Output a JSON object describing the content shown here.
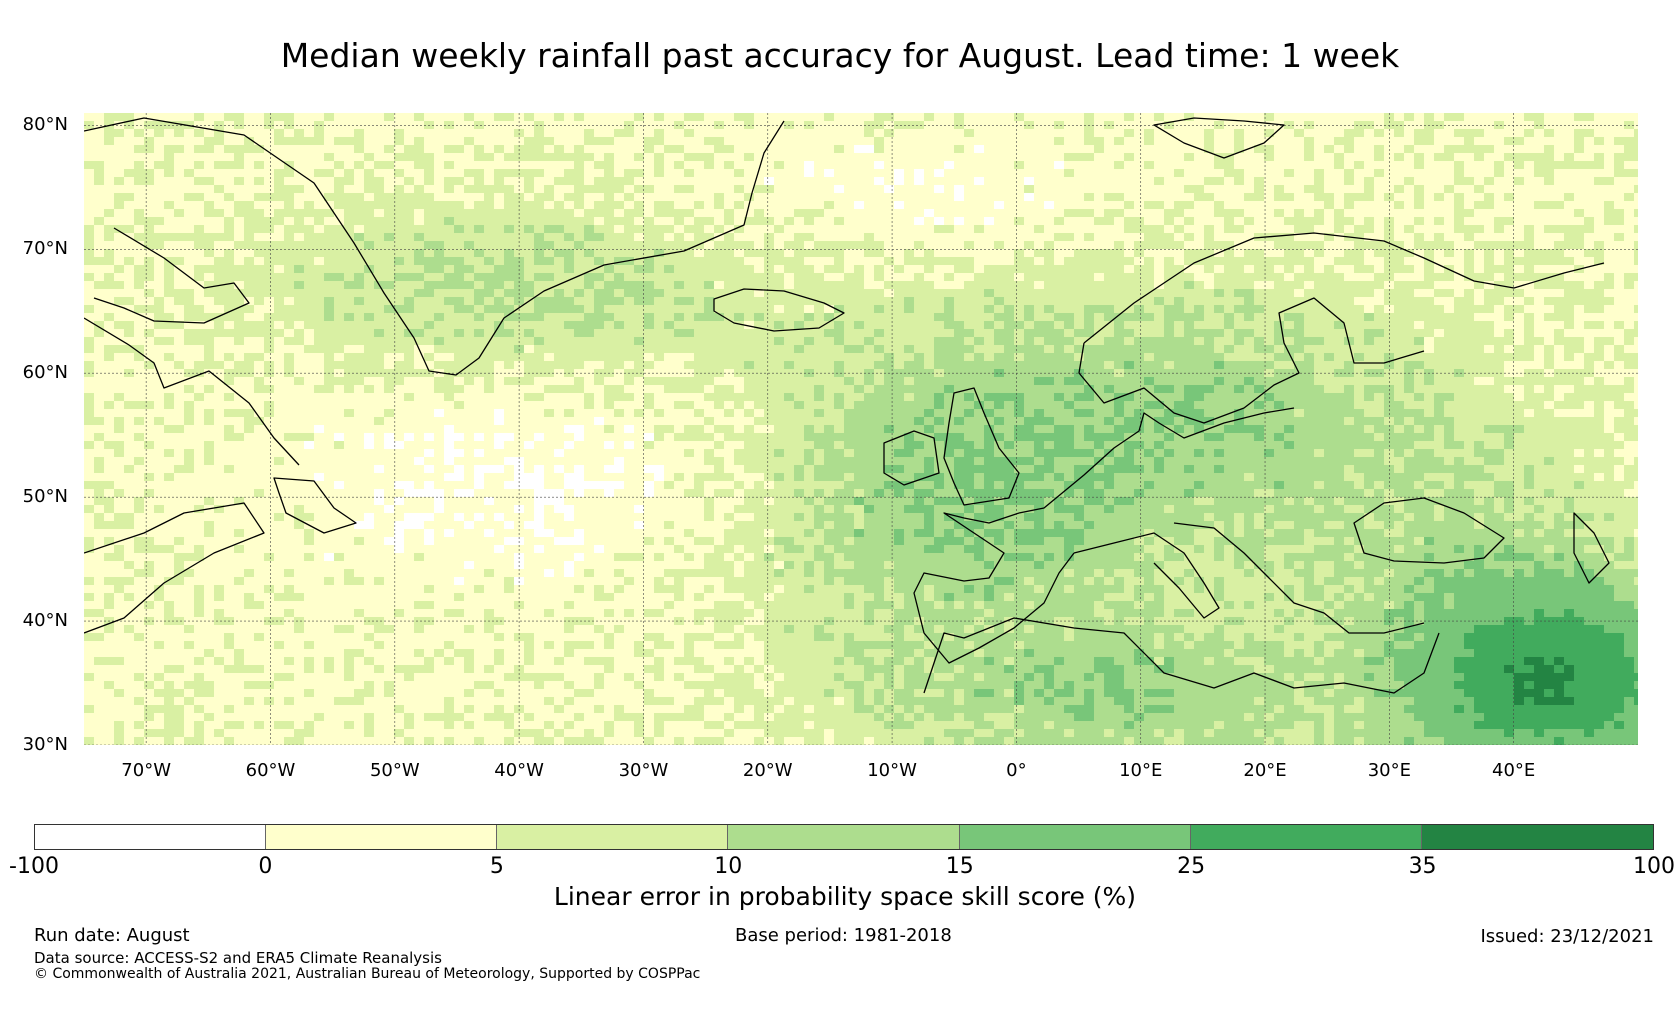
{
  "title": "Median weekly rainfall past accuracy for August. Lead time: 1 week",
  "map": {
    "region": {
      "lon_range": [
        -75,
        50
      ],
      "lat_range": [
        30,
        81
      ]
    },
    "latitude_labels": [
      {
        "lat": 80,
        "text": "80°N"
      },
      {
        "lat": 70,
        "text": "70°N"
      },
      {
        "lat": 60,
        "text": "60°N"
      },
      {
        "lat": 50,
        "text": "50°N"
      },
      {
        "lat": 40,
        "text": "40°N"
      },
      {
        "lat": 30,
        "text": "30°N"
      }
    ],
    "longitude_labels": [
      {
        "lon": -70,
        "text": "70°W"
      },
      {
        "lon": -60,
        "text": "60°W"
      },
      {
        "lon": -50,
        "text": "50°W"
      },
      {
        "lon": -40,
        "text": "40°W"
      },
      {
        "lon": -30,
        "text": "30°W"
      },
      {
        "lon": -20,
        "text": "20°W"
      },
      {
        "lon": -10,
        "text": "10°W"
      },
      {
        "lon": 0,
        "text": "0°"
      },
      {
        "lon": 10,
        "text": "10°E"
      },
      {
        "lon": 20,
        "text": "20°E"
      },
      {
        "lon": 30,
        "text": "30°E"
      },
      {
        "lon": 40,
        "text": "40°E"
      }
    ],
    "gridlines": true
  },
  "colorbar": {
    "label": "Linear error in probability space skill score (%)",
    "ticks": [
      "-100",
      "0",
      "5",
      "10",
      "15",
      "25",
      "35",
      "100"
    ],
    "bins": [
      {
        "from": -100,
        "to": 0,
        "color": "#ffffff"
      },
      {
        "from": 0,
        "to": 5,
        "color": "#ffffcc"
      },
      {
        "from": 5,
        "to": 10,
        "color": "#d9f0a3"
      },
      {
        "from": 10,
        "to": 15,
        "color": "#addd8e"
      },
      {
        "from": 15,
        "to": 25,
        "color": "#78c679"
      },
      {
        "from": 25,
        "to": 35,
        "color": "#41ab5d"
      },
      {
        "from": 35,
        "to": 100,
        "color": "#238443"
      }
    ]
  },
  "footer": {
    "run_date": "Run date: August",
    "base_period": "Base period: 1981-2018",
    "issued": "Issued: 23/12/2021",
    "data_source": "Data source: ACCESS-S2 and ERA5 Climate Reanalysis",
    "copyright": "© Commonwealth of Australia 2021, Australian Bureau of Meteorology, Supported by COSPPac"
  }
}
